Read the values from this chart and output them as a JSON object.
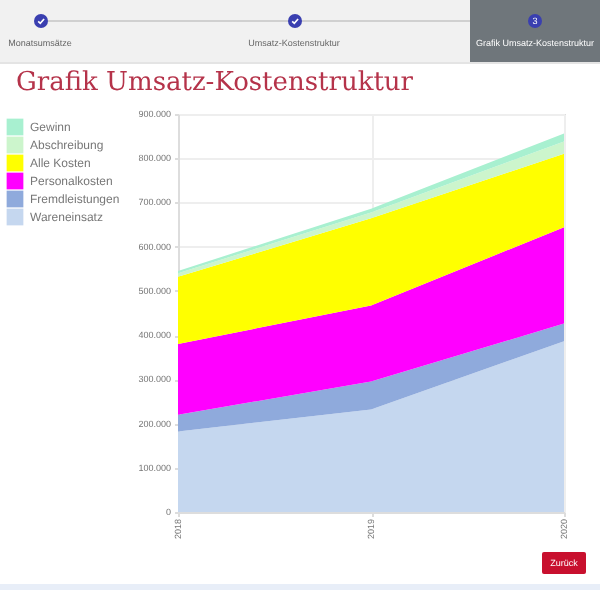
{
  "chart_data": {
    "type": "area",
    "title": "Grafik Umsatz-Kostenstruktur",
    "stacked": true,
    "categories": [
      "2018",
      "2019",
      "2020"
    ],
    "series": [
      {
        "name": "Wareneinsatz",
        "color": "#c5d7ef",
        "values": [
          182000,
          232000,
          386000
        ]
      },
      {
        "name": "Fremdleistungen",
        "color": "#8faadc",
        "values": [
          38000,
          63000,
          40000
        ]
      },
      {
        "name": "Personalkosten",
        "color": "#ff00ff",
        "values": [
          160000,
          172000,
          218000
        ]
      },
      {
        "name": "Alle Kosten",
        "color": "#ffff00",
        "values": [
          152000,
          197000,
          166000
        ]
      },
      {
        "name": "Abschreibung",
        "color": "#ccf5cc",
        "values": [
          8000,
          13000,
          28000
        ]
      },
      {
        "name": "Gewinn",
        "color": "#a8f0d0",
        "values": [
          5000,
          9000,
          18000
        ]
      }
    ],
    "ylim": [
      0,
      900000
    ],
    "yticks": [
      0,
      {
        "value": 100000,
        "label": "100.000"
      },
      {
        "value": 200000,
        "label": "200.000"
      },
      {
        "value": 300000,
        "label": "300.000"
      },
      {
        "value": 400000,
        "label": "400.000"
      },
      {
        "value": 500000,
        "label": "500.000"
      },
      {
        "value": 600000,
        "label": "600.000"
      },
      {
        "value": 700000,
        "label": "700.000"
      },
      {
        "value": 800000,
        "label": "800.000"
      },
      {
        "value": 900000,
        "label": "900.000"
      }
    ],
    "grid": true,
    "legend": "top left",
    "annotations": [
      "Monatsumsätze",
      "Umsatz-Kostenstruktur",
      "3",
      "Grafik Umsatz-Kostenstruktur",
      "Zurück"
    ]
  }
}
